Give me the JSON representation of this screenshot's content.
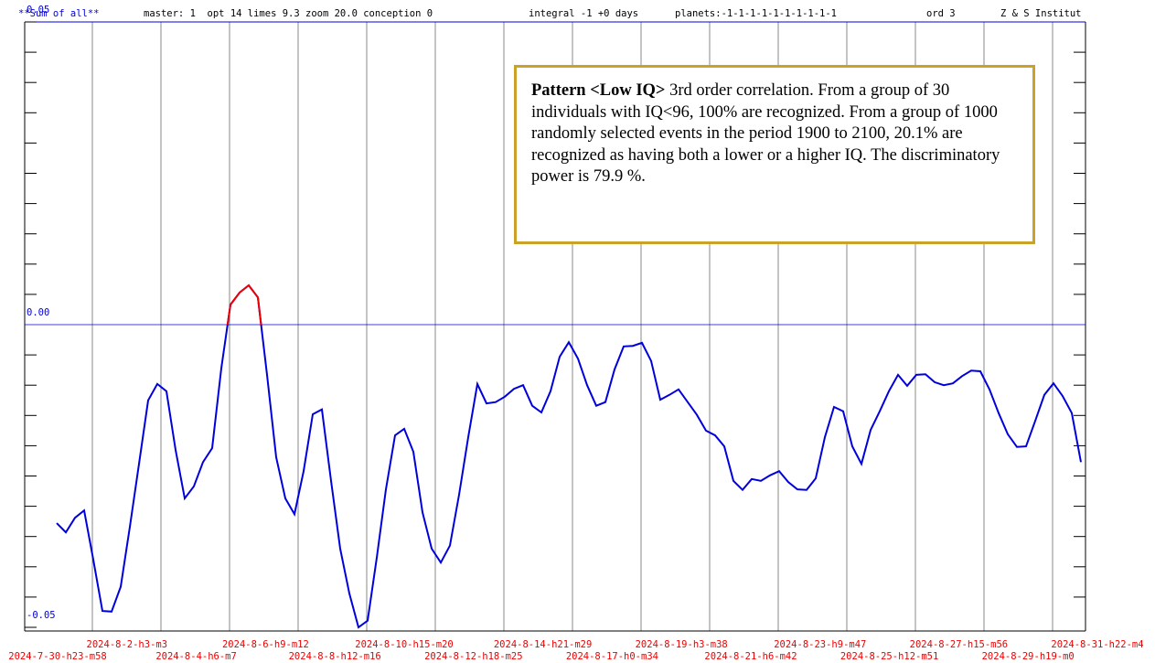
{
  "chart_data": {
    "type": "line",
    "header": [
      "**Sum of all**",
      "master: 1  opt 14 limes 9.3 zoom 20.0 conception 0",
      "integral -1 +0 days",
      "planets:-1-1-1-1-1-1-1-1-1-1",
      "ord 3",
      "Z & S Institut"
    ],
    "annotation": {
      "bold": "Pattern <Low IQ>",
      "text": " 3rd order correlation. From a group of 30 individuals with IQ<96, 100% are recognized. From a group of 1000 randomly selected events in the period 1900 to 2100, 20.1% are recognized as having both a lower or a higher IQ. The discriminatory power is 79.9 %."
    },
    "xtick_labels": [
      "2024-7-30-h23-m58",
      "2024-8-2-h3-m3",
      "2024-8-4-h6-m7",
      "2024-8-6-h9-m12",
      "2024-8-8-h12-m16",
      "2024-8-10-h15-m20",
      "2024-8-12-h18-m25",
      "2024-8-14-h21-m29",
      "2024-8-17-h0-m34",
      "2024-8-19-h3-m38",
      "2024-8-21-h6-m42",
      "2024-8-23-h9-m47",
      "2024-8-25-h12-m51",
      "2024-8-27-h15-m56",
      "2024-8-29-h19-m0",
      "2024-8-31-h22-m4"
    ],
    "ylim": [
      -0.05,
      0.05
    ],
    "yticks": [
      -0.05,
      {
        "value": 0,
        "label": "0.00"
      },
      0.05
    ],
    "yminor_ticks": [
      -0.045,
      -0.04,
      -0.035,
      -0.03,
      -0.025,
      -0.02,
      -0.015,
      -0.01,
      -0.005,
      0.005,
      0.01,
      0.015,
      0.02,
      0.025,
      0.03,
      0.035,
      0.04,
      0.045
    ],
    "series": [
      {
        "color": "#0000dd",
        "above_zero_color": "#ee0000",
        "values": [
          -0.0328,
          -0.0343,
          -0.0319,
          -0.0307,
          -0.0388,
          -0.0473,
          -0.0474,
          -0.0433,
          -0.0334,
          -0.023,
          -0.0125,
          -0.0098,
          -0.011,
          -0.0207,
          -0.0287,
          -0.0267,
          -0.0227,
          -0.0204,
          -0.0072,
          0.0033,
          0.0053,
          0.0065,
          0.0045,
          -0.0083,
          -0.0219,
          -0.0287,
          -0.0313,
          -0.0242,
          -0.0148,
          -0.014,
          -0.0258,
          -0.037,
          -0.0444,
          -0.05,
          -0.0489,
          -0.0385,
          -0.0272,
          -0.0183,
          -0.0172,
          -0.021,
          -0.031,
          -0.037,
          -0.0393,
          -0.0365,
          -0.0281,
          -0.0186,
          -0.0098,
          -0.013,
          -0.0128,
          -0.0119,
          -0.0106,
          -0.01,
          -0.0134,
          -0.0145,
          -0.011,
          -0.0053,
          -0.0029,
          -0.0056,
          -0.01,
          -0.0134,
          -0.0128,
          -0.0074,
          -0.0036,
          -0.0035,
          -0.003,
          -0.006,
          -0.0124,
          -0.0116,
          -0.0107,
          -0.0128,
          -0.0149,
          -0.0175,
          -0.0183,
          -0.0201,
          -0.0258,
          -0.0273,
          -0.0255,
          -0.0258,
          -0.0249,
          -0.0242,
          -0.026,
          -0.0272,
          -0.0273,
          -0.0254,
          -0.0186,
          -0.0136,
          -0.0143,
          -0.0201,
          -0.023,
          -0.0174,
          -0.0143,
          -0.011,
          -0.0083,
          -0.0101,
          -0.0083,
          -0.0082,
          -0.0095,
          -0.01,
          -0.0097,
          -0.0085,
          -0.0076,
          -0.0077,
          -0.0107,
          -0.0146,
          -0.0181,
          -0.0202,
          -0.0201,
          -0.0159,
          -0.0116,
          -0.0097,
          -0.0118,
          -0.0146,
          -0.0227
        ]
      }
    ]
  }
}
